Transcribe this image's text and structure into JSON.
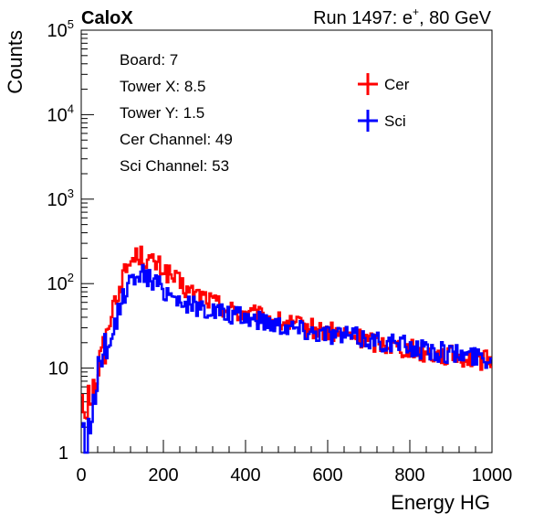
{
  "header": {
    "experiment": "CaloX",
    "run_label": "Run 1497: e",
    "run_superscript": "+",
    "run_suffix": ", 80 GeV"
  },
  "info": {
    "board": "Board: 7",
    "tower_x": "Tower X: 8.5",
    "tower_y": "Tower Y: 1.5",
    "cer_channel": "Cer Channel: 49",
    "sci_channel": "Sci Channel: 53"
  },
  "legend": {
    "cer": "Cer",
    "sci": "Sci"
  },
  "colors": {
    "cer": "#ff0000",
    "sci": "#0000ff"
  },
  "chart_data": {
    "type": "line",
    "xlabel": "Energy HG",
    "ylabel": "Counts",
    "xlim": [
      0,
      1000
    ],
    "ylim": [
      1,
      100000
    ],
    "yscale": "log",
    "xticks": [
      0,
      200,
      400,
      600,
      800,
      1000
    ],
    "yticks": [
      {
        "value": 1,
        "base": "1",
        "exp": ""
      },
      {
        "value": 10,
        "base": "10",
        "exp": ""
      },
      {
        "value": 100,
        "base": "10",
        "exp": "2"
      },
      {
        "value": 1000,
        "base": "10",
        "exp": "3"
      },
      {
        "value": 10000,
        "base": "10",
        "exp": "4"
      },
      {
        "value": 100000,
        "base": "10",
        "exp": "5"
      }
    ],
    "legend_position": "top-right",
    "grid": false,
    "series": [
      {
        "name": "Cer",
        "x": [
          0,
          10,
          20,
          30,
          40,
          50,
          60,
          70,
          80,
          90,
          100,
          110,
          120,
          130,
          140,
          150,
          160,
          170,
          180,
          190,
          200,
          220,
          240,
          260,
          280,
          300,
          320,
          340,
          360,
          380,
          400,
          450,
          500,
          550,
          600,
          650,
          700,
          750,
          800,
          850,
          900,
          950,
          1000
        ],
        "values": [
          6,
          4,
          7,
          5,
          10,
          12,
          20,
          40,
          60,
          80,
          110,
          150,
          180,
          205,
          220,
          210,
          190,
          180,
          170,
          160,
          150,
          120,
          100,
          80,
          75,
          70,
          60,
          55,
          50,
          45,
          45,
          38,
          33,
          30,
          27,
          24,
          21,
          19,
          17,
          15,
          14,
          13,
          12
        ]
      },
      {
        "name": "Sci",
        "x": [
          0,
          10,
          20,
          30,
          40,
          50,
          60,
          70,
          80,
          90,
          100,
          110,
          120,
          130,
          140,
          150,
          160,
          170,
          180,
          190,
          200,
          220,
          240,
          260,
          280,
          300,
          320,
          340,
          360,
          380,
          400,
          450,
          500,
          550,
          600,
          650,
          700,
          750,
          800,
          850,
          900,
          950,
          1000
        ],
        "values": [
          3,
          1,
          2,
          4,
          8,
          9,
          12,
          18,
          30,
          45,
          65,
          85,
          105,
          125,
          140,
          130,
          120,
          110,
          100,
          95,
          85,
          75,
          65,
          55,
          55,
          50,
          48,
          45,
          42,
          40,
          40,
          36,
          32,
          28,
          26,
          24,
          22,
          20,
          18,
          16,
          15,
          14,
          13
        ]
      }
    ]
  }
}
